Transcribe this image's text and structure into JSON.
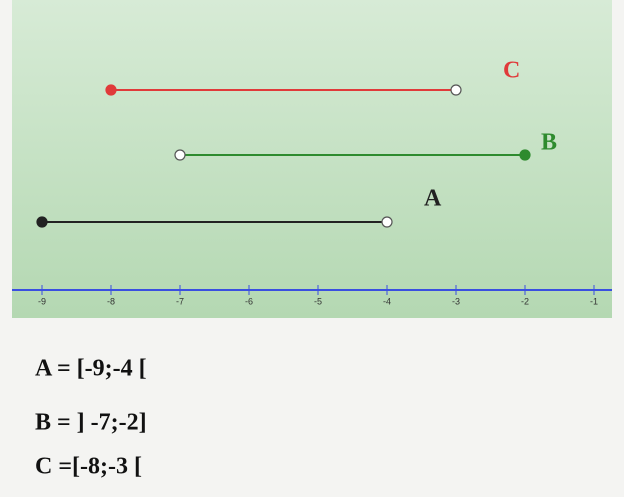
{
  "number_line": {
    "xticks": [
      -9,
      -8,
      -7,
      -6,
      -5,
      -4,
      -3,
      -2,
      -1
    ],
    "axis_color": "#3a4fe0",
    "intervals": [
      {
        "name": "C",
        "color": "#e03a3a",
        "start": -8,
        "end": -3,
        "start_closed": true,
        "end_closed": false
      },
      {
        "name": "B",
        "color": "#2e8b2e",
        "start": -7,
        "end": -2,
        "start_closed": false,
        "end_closed": true
      },
      {
        "name": "A",
        "color": "#222222",
        "start": -9,
        "end": -4,
        "start_closed": true,
        "end_closed": false
      }
    ]
  },
  "notations": [
    "A = [-9;-4 [",
    "B = ] -7;-2]",
    "C =[-8;-3 ["
  ]
}
